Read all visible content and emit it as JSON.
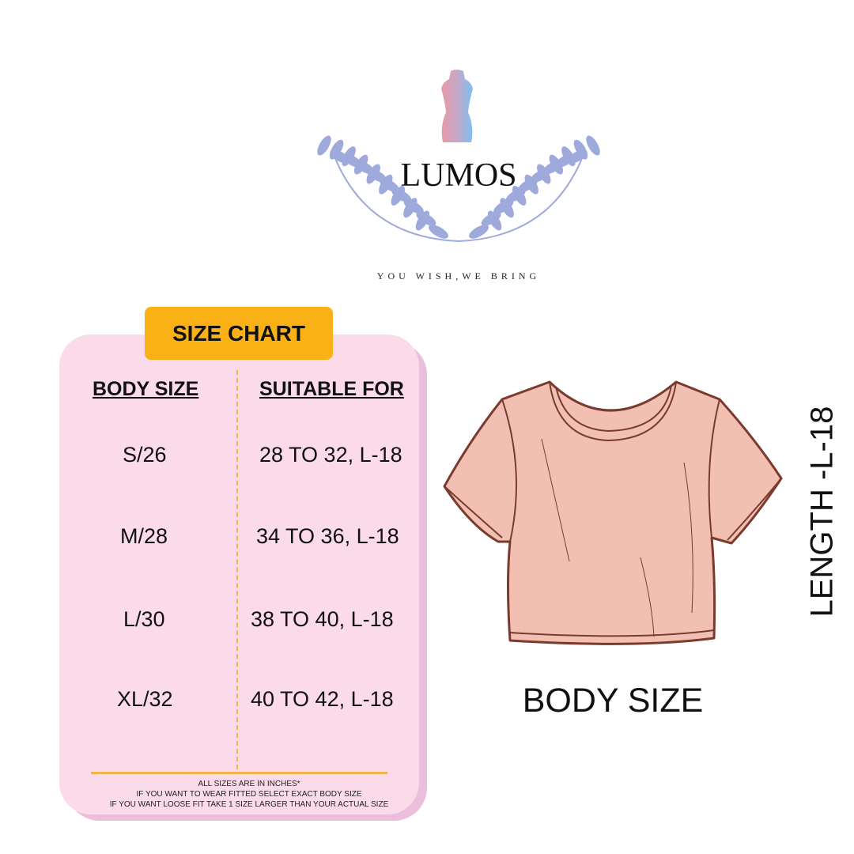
{
  "logo": {
    "brand": "LUMOS",
    "tagline": "YOU  WISH,WE BRING",
    "leaf_color": "#9faadc",
    "mannequin_colors": [
      "#e89aa3",
      "#7cc0f2"
    ]
  },
  "chart": {
    "badge": "SIZE CHART",
    "headers": {
      "body_size": "BODY SIZE",
      "suitable_for": "SUITABLE FOR"
    },
    "rows": [
      {
        "size": "S/26",
        "fit": "28 TO 32, L-18"
      },
      {
        "size": "M/28",
        "fit": "34 TO 36, L-18"
      },
      {
        "size": "L/30",
        "fit": "38 TO 40, L-18"
      },
      {
        "size": "XL/32",
        "fit": "40 TO 42, L-18"
      }
    ],
    "notes": [
      "ALL SIZES ARE IN INCHES*",
      "IF YOU WANT TO WEAR FITTED SELECT EXACT BODY SIZE",
      "IF YOU WANT LOOSE FIT TAKE 1 SIZE LARGER THAN YOUR ACTUAL SIZE"
    ],
    "colors": {
      "card": "#fbdbea",
      "badge": "#f9b116",
      "accent_line": "#f2b44a"
    }
  },
  "garment": {
    "length_label": "LENGTH -L-18",
    "caption": "BODY SIZE",
    "fill": "#f2c0b3",
    "stroke": "#7a3b2e"
  }
}
